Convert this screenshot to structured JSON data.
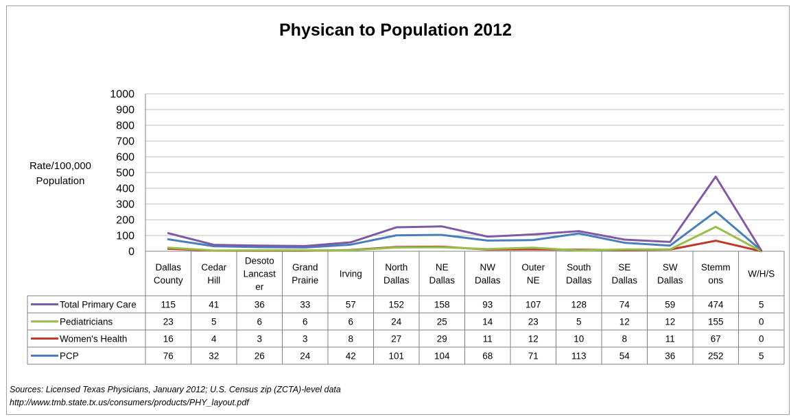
{
  "chart_data": {
    "type": "line",
    "title": "Physican to Population 2012",
    "ylabel": "Rate/100,000 Population",
    "ylim": [
      0,
      1000
    ],
    "yticks": [
      "0",
      "100",
      "200",
      "300",
      "400",
      "500",
      "600",
      "700",
      "800",
      "900",
      "1000"
    ],
    "grid": true,
    "legend": "data-table",
    "categories": [
      [
        "Dallas",
        "County"
      ],
      [
        "Cedar",
        "Hill"
      ],
      [
        "Desoto",
        "Lancast",
        "er"
      ],
      [
        "Grand",
        "Prairie"
      ],
      [
        "Irving"
      ],
      [
        "North",
        "Dallas"
      ],
      [
        "NE",
        "Dallas"
      ],
      [
        "NW",
        "Dallas"
      ],
      [
        "Outer",
        "NE"
      ],
      [
        "South",
        "Dallas"
      ],
      [
        "SE",
        "Dallas"
      ],
      [
        "SW",
        "Dallas"
      ],
      [
        "Stemm",
        "ons"
      ],
      [
        "W/H/S"
      ]
    ],
    "series": [
      {
        "name": "Total Primary Care",
        "color": "#7f5aa3",
        "values": [
          115,
          41,
          36,
          33,
          57,
          152,
          158,
          93,
          107,
          128,
          74,
          59,
          474,
          5
        ]
      },
      {
        "name": "Pediatricians",
        "color": "#96c04a",
        "values": [
          23,
          5,
          6,
          6,
          6,
          24,
          25,
          14,
          23,
          5,
          12,
          12,
          155,
          0
        ]
      },
      {
        "name": "Women's Health",
        "color": "#c0392b",
        "values": [
          16,
          4,
          3,
          3,
          8,
          27,
          29,
          11,
          12,
          10,
          8,
          11,
          67,
          0
        ]
      },
      {
        "name": "PCP",
        "color": "#4a7ebb",
        "values": [
          76,
          32,
          26,
          24,
          42,
          101,
          104,
          68,
          71,
          113,
          54,
          36,
          252,
          5
        ]
      }
    ]
  },
  "sources": {
    "line1": "Sources: Licensed Texas Physicians, January 2012; U.S. Census zip (ZCTA)-level data",
    "line2": "http://www.tmb.state.tx.us/consumers/products/PHY_layout.pdf"
  }
}
